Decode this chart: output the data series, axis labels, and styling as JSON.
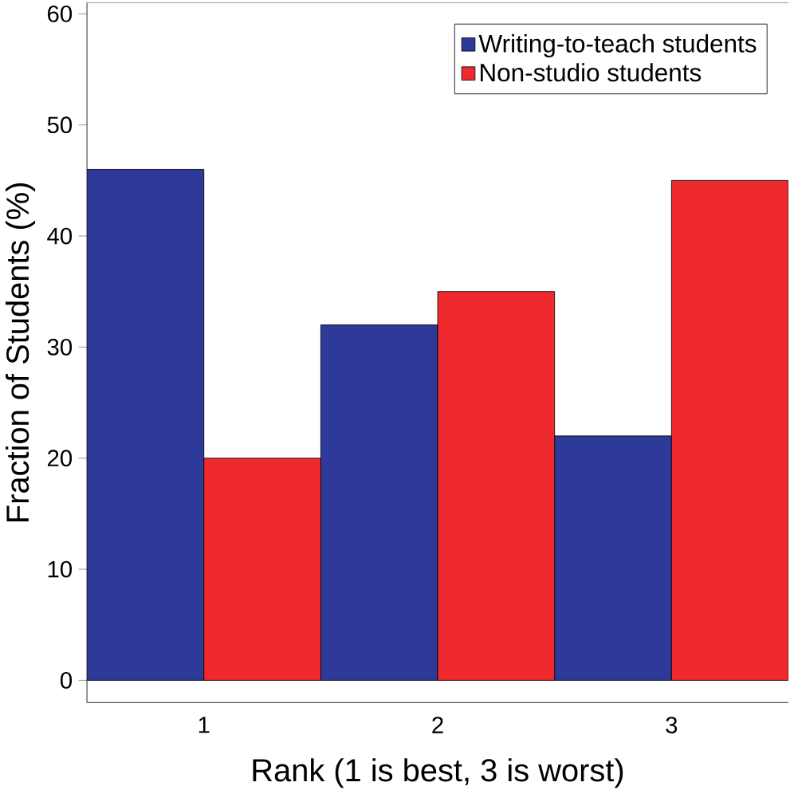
{
  "chart_data": {
    "type": "bar",
    "xlabel": "Rank (1 is best, 3 is worst)",
    "ylabel": "Fraction of Students (%)",
    "categories": [
      "1",
      "2",
      "3"
    ],
    "series": [
      {
        "name": "Writing-to-teach students",
        "color": "#2e3a9a",
        "values": [
          46,
          32,
          22
        ]
      },
      {
        "name": "Non-studio students",
        "color": "#ee2a2e",
        "values": [
          20,
          35,
          45
        ]
      }
    ],
    "ylim": [
      -2,
      61
    ],
    "yticks": [
      0,
      10,
      20,
      30,
      40,
      50,
      60
    ],
    "legend": "top right"
  }
}
